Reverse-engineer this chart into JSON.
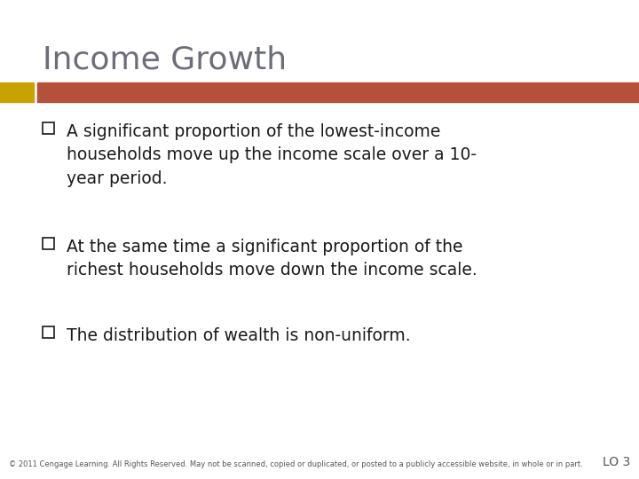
{
  "title": "Income Growth",
  "title_color": "#6d6d7a",
  "title_fontsize": 26,
  "background_color": "#ffffff",
  "bar_left_color": "#c8a200",
  "bar_right_color": "#b5503a",
  "bullet_points": [
    "A significant proportion of the lowest-income\nhouseholds move up the income scale over a 10-\nyear period.",
    "At the same time a significant proportion of the\nrichest households move down the income scale.",
    "The distribution of wealth is non-uniform."
  ],
  "bullet_fontsize": 13.5,
  "bullet_color": "#1a1a1a",
  "bullet_box_color": "#1a1a1a",
  "footer_text": "© 2011 Cengage Learning. All Rights Reserved. May not be scanned, copied or duplicated, or posted to a publicly accessible website, in whole or in part.",
  "footer_right": "LO 3",
  "footer_fontsize": 6.0,
  "footer_color": "#555555"
}
